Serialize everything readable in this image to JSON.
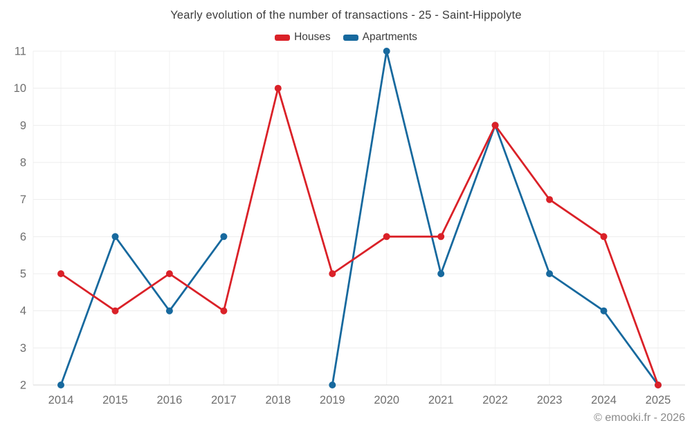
{
  "page": {
    "footer": "© emooki.fr - 2026"
  },
  "colors": {
    "background": "#ffffff",
    "grid_horizontal": "#ededed",
    "grid_vertical": "#f1f1f1",
    "axis_line": "#d9d9d9",
    "axis_label": "#6e6e6e",
    "title_text": "#3c3c3c",
    "footer_text": "#8a8a8a",
    "houses_red": "#da2128",
    "apartments_blue": "#17699e"
  },
  "chart_data": {
    "type": "line",
    "title": "Yearly evolution of the number of transactions - 25 - Saint-Hippolyte",
    "xlabel": "",
    "ylabel": "",
    "x": [
      "2014",
      "2015",
      "2016",
      "2017",
      "2018",
      "2019",
      "2020",
      "2021",
      "2022",
      "2023",
      "2024",
      "2025"
    ],
    "y_ticks": [
      2,
      3,
      4,
      5,
      6,
      7,
      8,
      9,
      10,
      11
    ],
    "ylim": [
      2,
      11
    ],
    "grid": true,
    "legend_position": "top",
    "marker": "circle",
    "series": [
      {
        "name": "Houses",
        "color": "#da2128",
        "values": [
          5,
          4,
          5,
          4,
          10,
          5,
          6,
          6,
          9,
          7,
          6,
          2
        ]
      },
      {
        "name": "Apartments",
        "color": "#17699e",
        "values": [
          2,
          6,
          4,
          6,
          null,
          2,
          11,
          5,
          9,
          5,
          4,
          2
        ]
      }
    ]
  }
}
